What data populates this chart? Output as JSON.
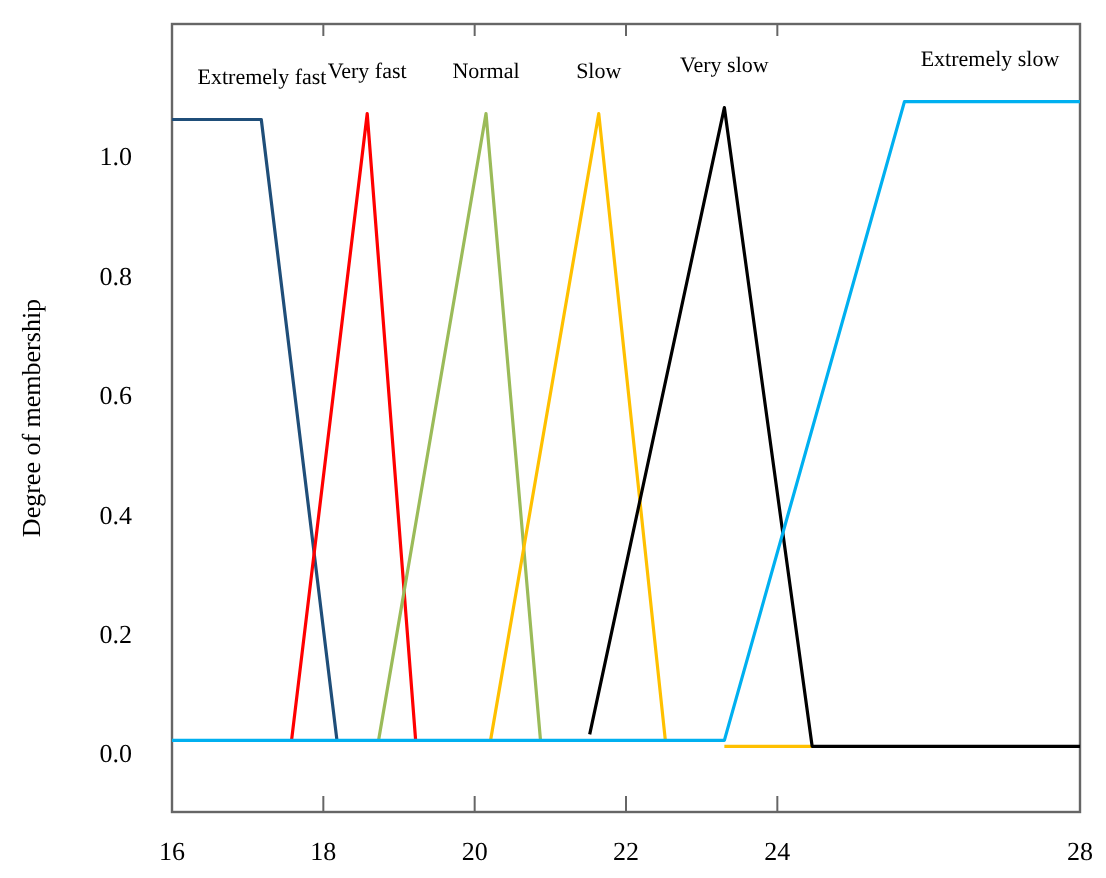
{
  "chart_data": {
    "type": "line",
    "ylabel": "Degree of membership",
    "xlim": [
      16,
      28
    ],
    "ylim": [
      -0.1,
      1.22
    ],
    "xticks": [
      16,
      18,
      20,
      22,
      24,
      28
    ],
    "yticks": [
      {
        "value": 0,
        "label": "0.0"
      },
      {
        "value": 0.2,
        "label": "0.2"
      },
      {
        "value": 0.4,
        "label": "0.4"
      },
      {
        "value": 0.6,
        "label": "0.6"
      },
      {
        "value": 0.8,
        "label": "0.8"
      },
      {
        "value": 1,
        "label": "1.0"
      }
    ],
    "grid": false,
    "marker": "none",
    "line_style": "solid",
    "series": [
      {
        "name": "Extremely fast",
        "color": "#1f4e79",
        "x": [
          16,
          17.18,
          18.18
        ],
        "values": [
          1.06,
          1.06,
          0.02
        ]
      },
      {
        "name": "Very fast",
        "color": "#ff0000",
        "x": [
          17.58,
          18.58,
          19.22
        ],
        "values": [
          0.02,
          1.07,
          0.02
        ]
      },
      {
        "name": "Normal",
        "color": "#9bbb59",
        "x": [
          18.73,
          20.15,
          20.87
        ],
        "values": [
          0.02,
          1.07,
          0.02
        ]
      },
      {
        "name": "Slow",
        "color": "#ffc000",
        "x": [
          20.21,
          21.64,
          22.52,
          23,
          23.3,
          24.46
        ],
        "values": [
          0.02,
          1.07,
          0.02,
          null,
          0.01,
          0.01
        ]
      },
      {
        "name": "Very slow",
        "color": "#000000",
        "x": [
          21.52,
          23.3,
          24.46,
          28
        ],
        "values": [
          0.03,
          1.08,
          0.01,
          0.01
        ]
      },
      {
        "name": "Extremely slow",
        "color": "#00b0f0",
        "x": [
          16,
          23.3,
          25.68,
          28
        ],
        "values": [
          0.02,
          0.02,
          1.09,
          1.09
        ]
      }
    ]
  }
}
